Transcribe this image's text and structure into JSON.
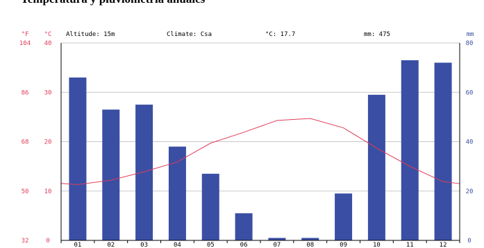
{
  "page_title": "Temperatura y pluviometría anuales",
  "chart_data": {
    "type": "bar",
    "title": "Temperatura y pluviometría anuales",
    "info": {
      "altitude": "Altitude: 15m",
      "climate": "Climate: Csa",
      "mean_temp": "°C: 17.7",
      "total_precip": "mm: 475"
    },
    "units": {
      "fahrenheit": "°F",
      "celsius": "°C",
      "precip": "mm"
    },
    "categories": [
      "01",
      "02",
      "03",
      "04",
      "05",
      "06",
      "07",
      "08",
      "09",
      "10",
      "11",
      "12"
    ],
    "series": [
      {
        "type": "bar",
        "axis": "right",
        "unit": "mm",
        "color": "#3a4fa3",
        "values": [
          66,
          53,
          55,
          38,
          27,
          11,
          1,
          1,
          19,
          59,
          73,
          72
        ]
      },
      {
        "type": "line",
        "axis": "left",
        "unit": "°C",
        "color": "#e03c5a",
        "values": [
          11.3,
          12.2,
          13.9,
          15.9,
          19.7,
          21.9,
          24.3,
          24.7,
          22.8,
          18.7,
          15.0,
          11.9
        ]
      }
    ],
    "y_left_celsius": {
      "ticks": [
        0,
        10,
        20,
        30,
        40
      ],
      "labels": [
        "0",
        "10",
        "20",
        "30",
        "40"
      ],
      "lim": [
        0,
        40
      ]
    },
    "y_left_fahrenheit": {
      "labels": [
        "32",
        "50",
        "68",
        "86",
        "104"
      ]
    },
    "y_right_precip": {
      "ticks": [
        0,
        20,
        40,
        60,
        80
      ],
      "labels": [
        "0",
        "20",
        "40",
        "60",
        "80"
      ],
      "lim": [
        0,
        80
      ]
    },
    "grid": true,
    "colors": {
      "temperature_axis": "#e03c5a",
      "precip_axis": "#3a4fa3",
      "grid": "#c8c8c8"
    }
  }
}
